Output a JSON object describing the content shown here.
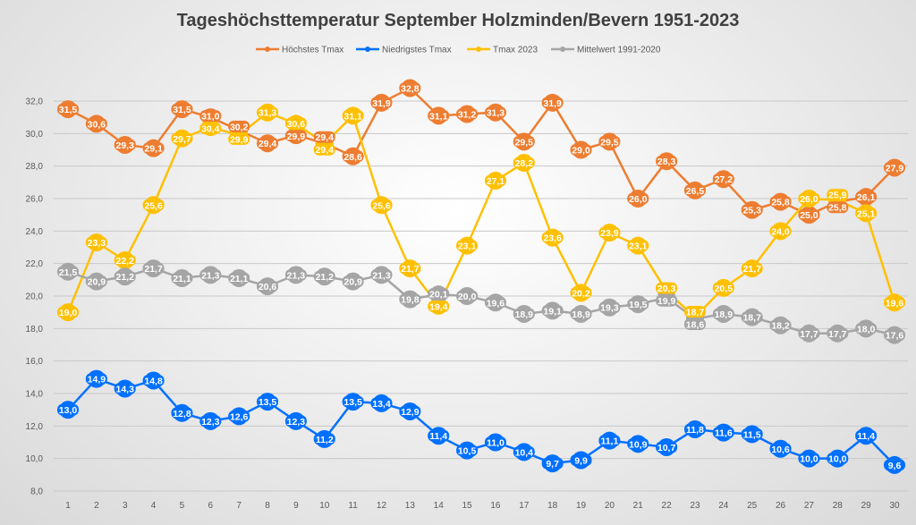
{
  "chart_data": {
    "type": "line",
    "title": "Tageshöchsttemperatur September Holzminden/Bevern 1951-2023",
    "xlabel": "",
    "ylabel": "",
    "ylim": [
      8,
      32
    ],
    "yticks": [
      "8,0",
      "10,0",
      "12,0",
      "14,0",
      "16,0",
      "18,0",
      "20,0",
      "22,0",
      "24,0",
      "26,0",
      "28,0",
      "30,0",
      "32,0"
    ],
    "categories": [
      1,
      2,
      3,
      4,
      5,
      6,
      7,
      8,
      9,
      10,
      11,
      12,
      13,
      14,
      15,
      16,
      17,
      18,
      19,
      20,
      21,
      22,
      23,
      24,
      25,
      26,
      27,
      28,
      29,
      30
    ],
    "grid": true,
    "legend": "top",
    "series": [
      {
        "name": "Höchstes Tmax",
        "color": "#ED7D31",
        "values": [
          31.5,
          30.6,
          29.3,
          29.1,
          31.5,
          31.0,
          30.2,
          29.4,
          29.9,
          29.4,
          28.6,
          31.9,
          32.8,
          31.1,
          31.2,
          31.3,
          29.5,
          31.9,
          29.0,
          29.5,
          26.0,
          28.3,
          26.5,
          27.2,
          25.3,
          25.8,
          25.0,
          25.8,
          26.1,
          27.9
        ]
      },
      {
        "name": "Niedrigstes Tmax",
        "color": "#0070FF",
        "values": [
          13.0,
          14.9,
          14.3,
          14.8,
          12.8,
          12.3,
          12.6,
          13.5,
          12.3,
          11.2,
          13.5,
          13.4,
          12.9,
          11.4,
          10.5,
          11.0,
          10.4,
          9.7,
          9.9,
          11.1,
          10.9,
          10.7,
          11.8,
          11.6,
          11.5,
          10.6,
          10.0,
          10.0,
          11.4,
          9.6
        ]
      },
      {
        "name": "Tmax 2023",
        "color": "#FFC000",
        "values": [
          19.0,
          23.3,
          22.2,
          25.6,
          29.7,
          30.4,
          29.9,
          31.3,
          30.6,
          29.4,
          31.1,
          25.6,
          21.7,
          19.4,
          23.1,
          27.1,
          28.2,
          23.6,
          20.2,
          23.9,
          23.1,
          20.3,
          18.7,
          20.5,
          21.7,
          24.0,
          26.0,
          25.9,
          25.1,
          19.6
        ]
      },
      {
        "name": "Mittelwert 1991-2020",
        "color": "#A5A5A5",
        "values": [
          21.5,
          20.9,
          21.2,
          21.7,
          21.1,
          21.3,
          21.1,
          20.6,
          21.3,
          21.2,
          20.9,
          21.3,
          19.8,
          20.1,
          20.0,
          19.6,
          18.9,
          19.1,
          18.9,
          19.3,
          19.5,
          19.9,
          18.6,
          18.9,
          18.7,
          18.2,
          17.7,
          17.7,
          18.0,
          17.6
        ]
      }
    ]
  }
}
